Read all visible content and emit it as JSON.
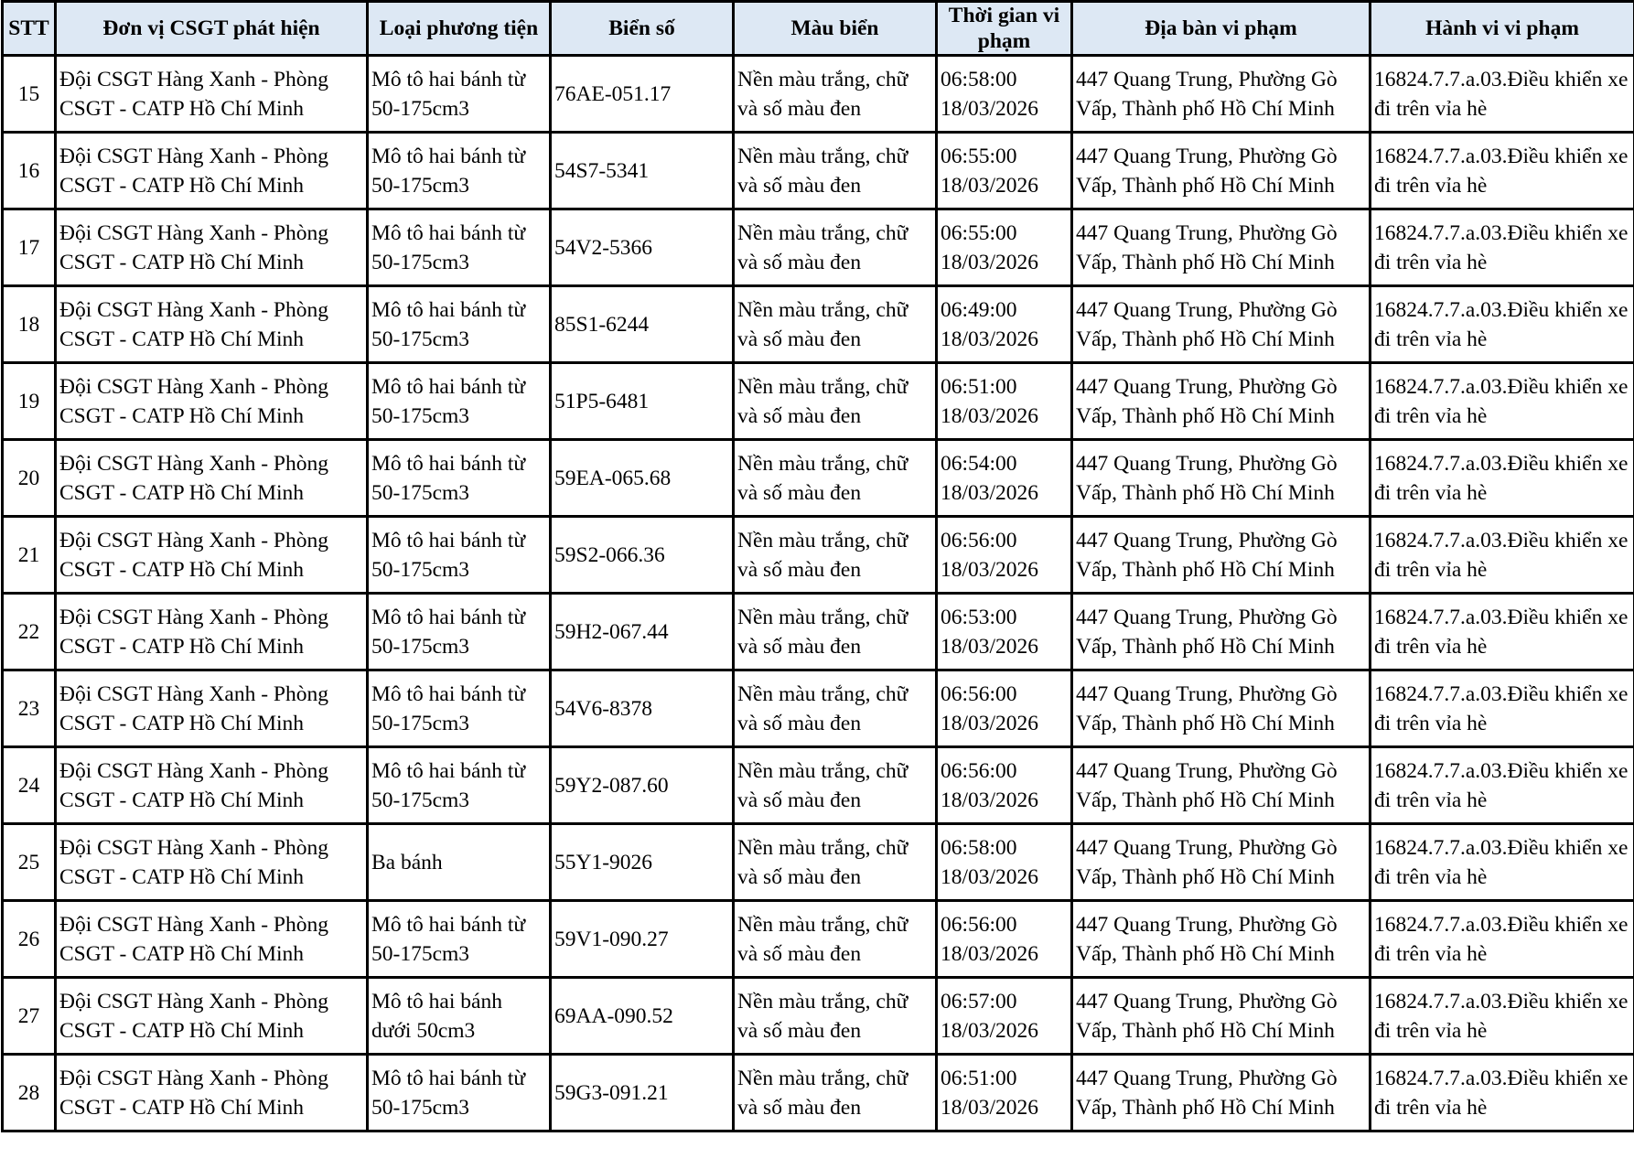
{
  "table": {
    "headers": [
      "STT",
      "Đơn vị CSGT phát hiện",
      "Loại phương tiện",
      "Biển số",
      "Màu biển",
      "Thời gian vi phạm",
      "Địa bàn vi phạm",
      "Hành vi vi phạm"
    ],
    "header_bg": "#dde8f4",
    "rows": [
      [
        "15",
        "Đội CSGT Hàng Xanh - Phòng CSGT - CATP Hồ Chí Minh",
        "Mô tô hai bánh từ 50-175cm3",
        "76AE-051.17",
        "Nền màu trắng, chữ và số màu đen",
        "06:58:00 18/03/2026",
        "447 Quang Trung, Phường Gò Vấp, Thành phố Hồ Chí Minh",
        "16824.7.7.a.03.Điều khiển xe đi trên vỉa hè"
      ],
      [
        "16",
        "Đội CSGT Hàng Xanh - Phòng CSGT - CATP Hồ Chí Minh",
        "Mô tô hai bánh từ 50-175cm3",
        "54S7-5341",
        "Nền màu trắng, chữ và số màu đen",
        "06:55:00 18/03/2026",
        "447 Quang Trung, Phường Gò Vấp, Thành phố Hồ Chí Minh",
        "16824.7.7.a.03.Điều khiển xe đi trên vỉa hè"
      ],
      [
        "17",
        "Đội CSGT Hàng Xanh - Phòng CSGT - CATP Hồ Chí Minh",
        "Mô tô hai bánh từ 50-175cm3",
        "54V2-5366",
        "Nền màu trắng, chữ và số màu đen",
        "06:55:00 18/03/2026",
        "447 Quang Trung, Phường Gò Vấp, Thành phố Hồ Chí Minh",
        "16824.7.7.a.03.Điều khiển xe đi trên vỉa hè"
      ],
      [
        "18",
        "Đội CSGT Hàng Xanh - Phòng CSGT - CATP Hồ Chí Minh",
        "Mô tô hai bánh từ 50-175cm3",
        "85S1-6244",
        "Nền màu trắng, chữ và số màu đen",
        "06:49:00 18/03/2026",
        "447 Quang Trung, Phường Gò Vấp, Thành phố Hồ Chí Minh",
        "16824.7.7.a.03.Điều khiển xe đi trên vỉa hè"
      ],
      [
        "19",
        "Đội CSGT Hàng Xanh - Phòng CSGT - CATP Hồ Chí Minh",
        "Mô tô hai bánh từ 50-175cm3",
        "51P5-6481",
        "Nền màu trắng, chữ và số màu đen",
        "06:51:00 18/03/2026",
        "447 Quang Trung, Phường Gò Vấp, Thành phố Hồ Chí Minh",
        "16824.7.7.a.03.Điều khiển xe đi trên vỉa hè"
      ],
      [
        "20",
        "Đội CSGT Hàng Xanh - Phòng CSGT - CATP Hồ Chí Minh",
        "Mô tô hai bánh từ 50-175cm3",
        "59EA-065.68",
        "Nền màu trắng, chữ và số màu đen",
        "06:54:00 18/03/2026",
        "447 Quang Trung, Phường Gò Vấp, Thành phố Hồ Chí Minh",
        "16824.7.7.a.03.Điều khiển xe đi trên vỉa hè"
      ],
      [
        "21",
        "Đội CSGT Hàng Xanh - Phòng CSGT - CATP Hồ Chí Minh",
        "Mô tô hai bánh từ 50-175cm3",
        "59S2-066.36",
        "Nền màu trắng, chữ và số màu đen",
        "06:56:00 18/03/2026",
        "447 Quang Trung, Phường Gò Vấp, Thành phố Hồ Chí Minh",
        "16824.7.7.a.03.Điều khiển xe đi trên vỉa hè"
      ],
      [
        "22",
        "Đội CSGT Hàng Xanh - Phòng CSGT - CATP Hồ Chí Minh",
        "Mô tô hai bánh từ 50-175cm3",
        "59H2-067.44",
        "Nền màu trắng, chữ và số màu đen",
        "06:53:00 18/03/2026",
        "447 Quang Trung, Phường Gò Vấp, Thành phố Hồ Chí Minh",
        "16824.7.7.a.03.Điều khiển xe đi trên vỉa hè"
      ],
      [
        "23",
        "Đội CSGT Hàng Xanh - Phòng CSGT - CATP Hồ Chí Minh",
        "Mô tô hai bánh từ 50-175cm3",
        "54V6-8378",
        "Nền màu trắng, chữ và số màu đen",
        "06:56:00 18/03/2026",
        "447 Quang Trung, Phường Gò Vấp, Thành phố Hồ Chí Minh",
        "16824.7.7.a.03.Điều khiển xe đi trên vỉa hè"
      ],
      [
        "24",
        "Đội CSGT Hàng Xanh - Phòng CSGT - CATP Hồ Chí Minh",
        "Mô tô hai bánh từ 50-175cm3",
        "59Y2-087.60",
        "Nền màu trắng, chữ và số màu đen",
        "06:56:00 18/03/2026",
        "447 Quang Trung, Phường Gò Vấp, Thành phố Hồ Chí Minh",
        "16824.7.7.a.03.Điều khiển xe đi trên vỉa hè"
      ],
      [
        "25",
        "Đội CSGT Hàng Xanh - Phòng CSGT - CATP Hồ Chí Minh",
        "Ba bánh",
        "55Y1-9026",
        "Nền màu trắng, chữ và số màu đen",
        "06:58:00 18/03/2026",
        "447 Quang Trung, Phường Gò Vấp, Thành phố Hồ Chí Minh",
        "16824.7.7.a.03.Điều khiển xe đi trên vỉa hè"
      ],
      [
        "26",
        "Đội CSGT Hàng Xanh - Phòng CSGT - CATP Hồ Chí Minh",
        "Mô tô hai bánh từ 50-175cm3",
        "59V1-090.27",
        "Nền màu trắng, chữ và số màu đen",
        "06:56:00 18/03/2026",
        "447 Quang Trung, Phường Gò Vấp, Thành phố Hồ Chí Minh",
        "16824.7.7.a.03.Điều khiển xe đi trên vỉa hè"
      ],
      [
        "27",
        "Đội CSGT Hàng Xanh - Phòng CSGT - CATP Hồ Chí Minh",
        "Mô tô hai bánh dưới 50cm3",
        "69AA-090.52",
        "Nền màu trắng, chữ và số màu đen",
        "06:57:00 18/03/2026",
        "447 Quang Trung, Phường Gò Vấp, Thành phố Hồ Chí Minh",
        "16824.7.7.a.03.Điều khiển xe đi trên vỉa hè"
      ],
      [
        "28",
        "Đội CSGT Hàng Xanh - Phòng CSGT - CATP Hồ Chí Minh",
        "Mô tô hai bánh từ 50-175cm3",
        "59G3-091.21",
        "Nền màu trắng, chữ và số màu đen",
        "06:51:00 18/03/2026",
        "447 Quang Trung, Phường Gò Vấp, Thành phố Hồ Chí Minh",
        "16824.7.7.a.03.Điều khiển xe đi trên vỉa hè"
      ]
    ]
  }
}
